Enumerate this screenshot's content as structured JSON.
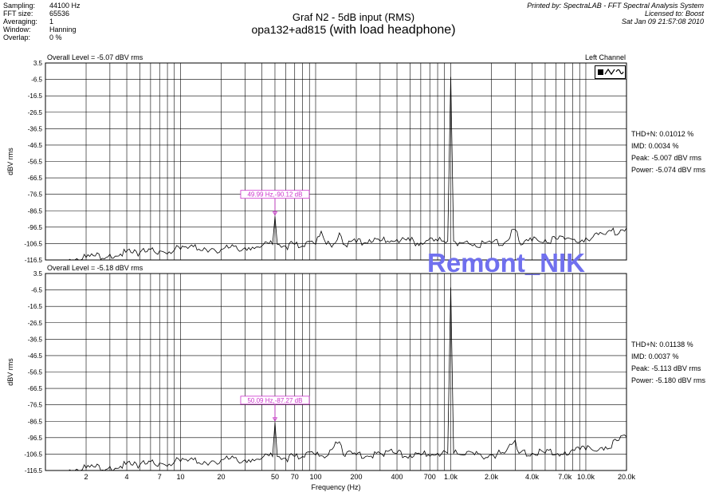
{
  "header": {
    "labels": [
      "Sampling:",
      "FFT size:",
      "Averaging:",
      "Window:",
      "Overlap:"
    ],
    "values": [
      "44100 Hz",
      "65536",
      "1",
      "Hanning",
      "0 %"
    ]
  },
  "title": {
    "line1": "Graf N2 - 5dB input (RMS)",
    "line2_prefix": "opa132+ad815 ",
    "line2_suffix": "(with load headphone)"
  },
  "print_info": {
    "line1": "Printed by: SpectraLAB - FFT Spectral Analysis System",
    "line2": "Licensed to: Boost",
    "line3": "Sat Jan 09 21:57:08 2010"
  },
  "watermark": "Remont_NIK",
  "colors": {
    "trace": "#000000",
    "grid": "#000000",
    "marker": "#cc33cc",
    "watermark": "#7070ee"
  },
  "chart_data": [
    {
      "type": "line",
      "overall_level": "Overall Level = -5.07 dBV rms",
      "channel": "Left Channel",
      "ylabel": "dBV rms",
      "ylim": [
        -116.5,
        3.5
      ],
      "yticks": [
        "3.5",
        "-6.5",
        "-16.5",
        "-26.5",
        "-36.5",
        "-46.5",
        "-56.5",
        "-66.5",
        "-76.5",
        "-86.5",
        "-96.5",
        "-106.5",
        "-116.5"
      ],
      "xscale": "log",
      "xlim": [
        1,
        20000
      ],
      "grid": true,
      "marker": {
        "label": "49.99 Hz,-90.12 dB",
        "x": 50,
        "y": -90.12
      },
      "stats": [
        "THD+N: 0.01012 %",
        "IMD: 0.0034 %",
        "Peak: -5.007 dBV rms",
        "Power: -5.074 dBV rms"
      ],
      "series": [
        {
          "x": [
            1.5,
            2,
            3,
            5,
            7,
            10,
            15,
            20,
            30,
            40,
            48,
            50,
            52,
            60,
            70,
            80,
            100,
            110,
            120,
            140,
            150,
            160,
            200,
            250,
            300,
            400,
            500,
            600,
            800,
            950,
            1000,
            1050,
            1200,
            1500,
            2000,
            2500,
            3000,
            3200,
            4000,
            5000,
            7000,
            10000,
            14000,
            20000
          ],
          "y": [
            -116,
            -115,
            -113,
            -112,
            -111,
            -110,
            -109,
            -110,
            -109,
            -108,
            -107,
            -90.1,
            -107,
            -108,
            -107,
            -108,
            -107,
            -99,
            -107,
            -106,
            -100,
            -107,
            -106,
            -104,
            -105,
            -104,
            -105,
            -106,
            -105,
            -105,
            -5,
            -105,
            -106,
            -107,
            -106,
            -106,
            -98,
            -105,
            -105,
            -104,
            -104,
            -103,
            -101,
            -97
          ]
        }
      ]
    },
    {
      "type": "line",
      "overall_level": "Overall Level = -5.18 dBV rms",
      "ylabel": "dBV rms",
      "ylim": [
        -116.5,
        3.5
      ],
      "yticks": [
        "3.5",
        "-6.5",
        "-16.5",
        "-26.5",
        "-36.5",
        "-46.5",
        "-56.5",
        "-66.5",
        "-76.5",
        "-86.5",
        "-96.5",
        "-106.5",
        "-116.5"
      ],
      "xscale": "log",
      "xlim": [
        1,
        20000
      ],
      "xlabel": "Frequency (Hz)",
      "xticks": [
        {
          "v": 2,
          "t": "2"
        },
        {
          "v": 4,
          "t": "4"
        },
        {
          "v": 7,
          "t": "7"
        },
        {
          "v": 10,
          "t": "10"
        },
        {
          "v": 20,
          "t": "20"
        },
        {
          "v": 50,
          "t": "50"
        },
        {
          "v": 70,
          "t": "70"
        },
        {
          "v": 100,
          "t": "100"
        },
        {
          "v": 200,
          "t": "200"
        },
        {
          "v": 400,
          "t": "400"
        },
        {
          "v": 700,
          "t": "700"
        },
        {
          "v": 1000,
          "t": "1.0k"
        },
        {
          "v": 2000,
          "t": "2.0k"
        },
        {
          "v": 4000,
          "t": "4.0k"
        },
        {
          "v": 7000,
          "t": "7.0k"
        },
        {
          "v": 10000,
          "t": "10.0k"
        },
        {
          "v": 20000,
          "t": "20.0k"
        }
      ],
      "grid": true,
      "marker": {
        "label": "50.09 Hz,-87.27 dB",
        "x": 50,
        "y": -87.27
      },
      "stats": [
        "THD+N: 0.01138 %",
        "IMD: 0.0037 %",
        "Peak: -5.113 dBV rms",
        "Power: -5.180 dBV rms"
      ],
      "series": [
        {
          "x": [
            1.5,
            2,
            3,
            5,
            7,
            10,
            15,
            20,
            30,
            40,
            48,
            50,
            52,
            60,
            70,
            80,
            100,
            120,
            150,
            160,
            200,
            300,
            400,
            500,
            600,
            800,
            950,
            1000,
            1050,
            1200,
            1500,
            2000,
            2500,
            3000,
            3200,
            4000,
            5000,
            7000,
            10000,
            14000,
            20000
          ],
          "y": [
            -116,
            -115,
            -114,
            -113,
            -112,
            -111,
            -111,
            -110,
            -110,
            -109,
            -108,
            -87.3,
            -108,
            -109,
            -108,
            -108,
            -107,
            -108,
            -99,
            -107,
            -107,
            -106,
            -106,
            -107,
            -107,
            -106,
            -106,
            -5,
            -106,
            -107,
            -107,
            -107,
            -106,
            -98,
            -106,
            -106,
            -106,
            -105,
            -104,
            -102,
            -96
          ]
        }
      ]
    }
  ]
}
